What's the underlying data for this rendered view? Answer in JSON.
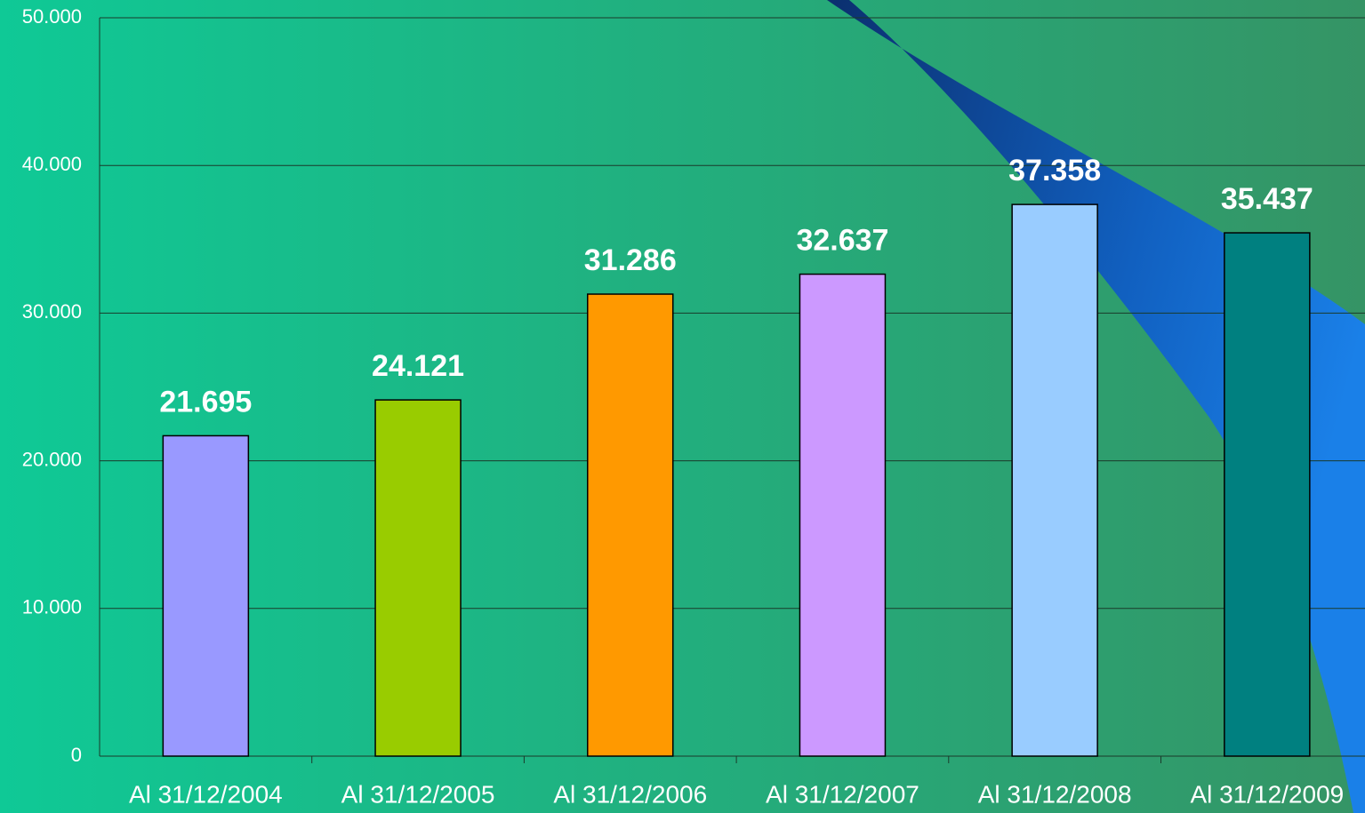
{
  "chart_data": {
    "type": "bar",
    "categories": [
      "Al 31/12/2004",
      "Al 31/12/2005",
      "Al 31/12/2006",
      "Al 31/12/2007",
      "Al 31/12/2008",
      "Al 31/12/2009"
    ],
    "values": [
      21695,
      24121,
      31286,
      32637,
      37358,
      35437
    ],
    "value_labels": [
      "21.695",
      "24.121",
      "31.286",
      "32.637",
      "37.358",
      "35.437"
    ],
    "colors": [
      "#9999ff",
      "#99cc00",
      "#ff9900",
      "#cc99ff",
      "#99ccff",
      "#008080"
    ],
    "ylim": [
      0,
      50000
    ],
    "yticks": [
      0,
      {
        "value": 10000,
        "label": "10.000"
      },
      {
        "value": 20000,
        "label": "20.000"
      },
      {
        "value": 30000,
        "label": "30.000"
      },
      {
        "value": 40000,
        "label": "40.000"
      },
      {
        "value": 50000,
        "label": "50.000"
      }
    ],
    "grid": true
  }
}
